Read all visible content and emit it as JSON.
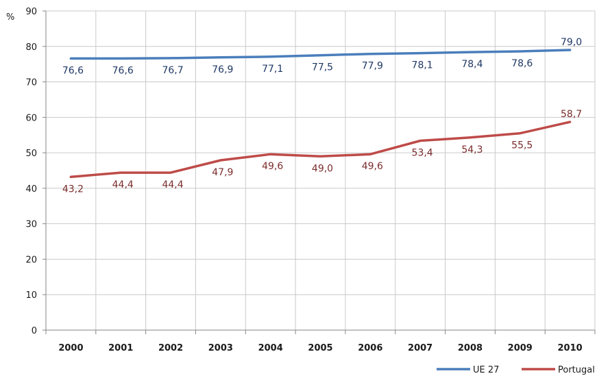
{
  "chart_data": {
    "type": "line",
    "ylabel": "%",
    "ylim": [
      0,
      90
    ],
    "yticks": [
      "0",
      "10",
      "20",
      "30",
      "40",
      "50",
      "60",
      "70",
      "80",
      "90"
    ],
    "categories": [
      "2000",
      "2001",
      "2002",
      "2003",
      "2004",
      "2005",
      "2006",
      "2007",
      "2008",
      "2009",
      "2010"
    ],
    "grid": true,
    "legend_position": "bottom-right",
    "series": [
      {
        "name": "UE 27",
        "color": "#4a7ebb",
        "label_color": "#1f3864",
        "values": [
          76.6,
          76.6,
          76.7,
          76.9,
          77.1,
          77.5,
          77.9,
          78.1,
          78.4,
          78.6,
          79.0
        ],
        "labels": [
          "76,6",
          "76,6",
          "76,7",
          "76,9",
          "77,1",
          "77,5",
          "77,9",
          "78,1",
          "78,4",
          "78,6",
          "79,0"
        ]
      },
      {
        "name": "Portugal",
        "color": "#be4b48",
        "label_color": "#7b2c2c",
        "values": [
          43.2,
          44.4,
          44.4,
          47.9,
          49.6,
          49.0,
          49.6,
          53.4,
          54.3,
          55.5,
          58.7
        ],
        "labels": [
          "43,2",
          "44,4",
          "44,4",
          "47,9",
          "49,6",
          "49,0",
          "49,6",
          "53,4",
          "54,3",
          "55,5",
          "58,7"
        ]
      }
    ]
  }
}
